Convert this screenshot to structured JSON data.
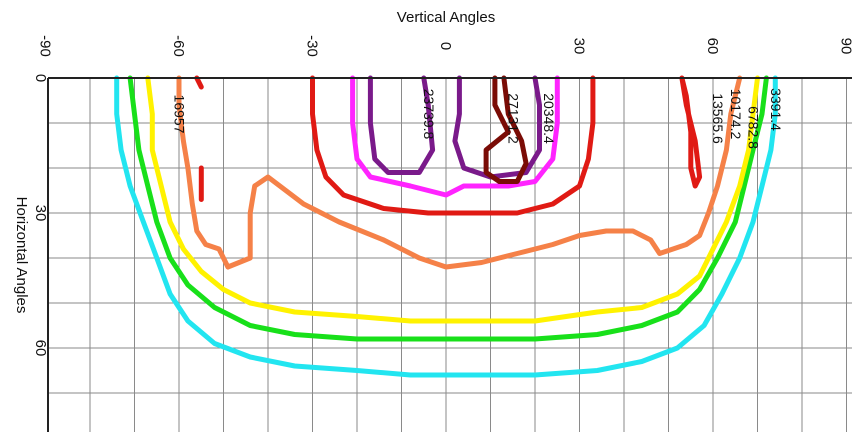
{
  "chart_data": {
    "type": "line",
    "title": "",
    "xlabel": "Vertical Angles",
    "ylabel": "Horizontal Angles",
    "xlim": [
      -90,
      90
    ],
    "ylim": [
      0,
      80
    ],
    "y_inverted": true,
    "grid": true,
    "legend": "none",
    "x_ticks": [
      {
        "value": -90,
        "label": "-90"
      },
      {
        "value": -60,
        "label": "-60"
      },
      {
        "value": -30,
        "label": "-30"
      },
      {
        "value": 0,
        "label": "0"
      },
      {
        "value": 30,
        "label": "30"
      },
      {
        "value": 60,
        "label": "60"
      },
      {
        "value": 90,
        "label": "90"
      }
    ],
    "y_ticks": [
      {
        "value": 0,
        "label": "0"
      },
      {
        "value": 30,
        "label": "30"
      },
      {
        "value": 60,
        "label": "60"
      }
    ],
    "series": [
      {
        "level": "3391.4",
        "color": "#22e5f0",
        "points": [
          [
            -74,
            0
          ],
          [
            -74,
            8
          ],
          [
            -73,
            16
          ],
          [
            -71,
            24
          ],
          [
            -68,
            32
          ],
          [
            -65,
            40
          ],
          [
            -62,
            48
          ],
          [
            -58,
            54
          ],
          [
            -52,
            59
          ],
          [
            -44,
            62
          ],
          [
            -34,
            64
          ],
          [
            -20,
            65
          ],
          [
            -8,
            66
          ],
          [
            0,
            66
          ],
          [
            8,
            66
          ],
          [
            20,
            66
          ],
          [
            34,
            65
          ],
          [
            44,
            63
          ],
          [
            52,
            60
          ],
          [
            58,
            55
          ],
          [
            62,
            48
          ],
          [
            66,
            40
          ],
          [
            69,
            32
          ],
          [
            71,
            24
          ],
          [
            73,
            16
          ],
          [
            74,
            8
          ],
          [
            74,
            0
          ]
        ]
      },
      {
        "level": "6782.8",
        "color": "#18e01a",
        "points": [
          [
            -71,
            0
          ],
          [
            -70,
            8
          ],
          [
            -69,
            16
          ],
          [
            -67,
            24
          ],
          [
            -65,
            32
          ],
          [
            -62,
            40
          ],
          [
            -58,
            46
          ],
          [
            -52,
            51
          ],
          [
            -44,
            55
          ],
          [
            -34,
            57
          ],
          [
            -20,
            58
          ],
          [
            -8,
            58
          ],
          [
            0,
            58
          ],
          [
            8,
            58
          ],
          [
            20,
            58
          ],
          [
            34,
            57
          ],
          [
            44,
            55
          ],
          [
            52,
            52
          ],
          [
            57,
            47
          ],
          [
            61,
            40
          ],
          [
            65,
            32
          ],
          [
            67,
            24
          ],
          [
            69,
            16
          ],
          [
            71,
            8
          ],
          [
            72,
            0
          ]
        ]
      },
      {
        "level": "10174.2",
        "color": "#fff200",
        "points": [
          [
            -67,
            0
          ],
          [
            -66,
            8
          ],
          [
            -66,
            16
          ],
          [
            -64,
            24
          ],
          [
            -62,
            32
          ],
          [
            -59,
            38
          ],
          [
            -55,
            43
          ],
          [
            -50,
            47
          ],
          [
            -44,
            50
          ],
          [
            -34,
            52
          ],
          [
            -20,
            53
          ],
          [
            -8,
            54
          ],
          [
            0,
            54
          ],
          [
            8,
            54
          ],
          [
            20,
            54
          ],
          [
            34,
            52
          ],
          [
            44,
            51
          ],
          [
            52,
            48
          ],
          [
            57,
            44
          ],
          [
            60,
            38
          ],
          [
            63,
            32
          ],
          [
            66,
            24
          ],
          [
            68,
            16
          ],
          [
            69,
            8
          ],
          [
            70,
            0
          ]
        ]
      },
      {
        "level": "13565.6",
        "color": "#f58148",
        "points": [
          [
            -60,
            0
          ],
          [
            -60,
            6
          ],
          [
            -59,
            14
          ],
          [
            -58,
            20
          ],
          [
            -57,
            28
          ],
          [
            -56,
            34
          ],
          [
            -54,
            37
          ],
          [
            -51,
            38
          ],
          [
            -49,
            42
          ],
          [
            -44,
            40
          ],
          [
            -44,
            30
          ],
          [
            -43,
            24
          ],
          [
            -40,
            22
          ],
          [
            -36,
            25
          ],
          [
            -32,
            28
          ],
          [
            -24,
            32
          ],
          [
            -14,
            36
          ],
          [
            -6,
            40
          ],
          [
            0,
            42
          ],
          [
            8,
            41
          ],
          [
            16,
            39
          ],
          [
            24,
            37
          ],
          [
            30,
            35
          ],
          [
            36,
            34
          ],
          [
            42,
            34
          ],
          [
            46,
            36
          ],
          [
            48,
            39
          ],
          [
            51,
            38
          ],
          [
            54,
            37
          ],
          [
            57,
            35
          ],
          [
            59,
            30
          ],
          [
            61,
            24
          ],
          [
            63,
            16
          ],
          [
            64,
            8
          ],
          [
            66,
            0
          ]
        ]
      },
      {
        "level": "16957",
        "color": "#e01a14",
        "points": [
          [
            -30,
            0
          ],
          [
            -30,
            8
          ],
          [
            -29,
            16
          ],
          [
            -27,
            22
          ],
          [
            -23,
            26
          ],
          [
            -14,
            29
          ],
          [
            -4,
            30
          ],
          [
            0,
            30
          ],
          [
            6,
            30
          ],
          [
            16,
            30
          ],
          [
            24,
            28
          ],
          [
            30,
            24
          ],
          [
            32,
            18
          ],
          [
            33,
            10
          ],
          [
            33,
            0
          ]
        ]
      },
      {
        "level": "16957 (peak)",
        "color": "#e01a14",
        "points": [
          [
            -56,
            0
          ],
          [
            -55,
            2
          ]
        ]
      },
      {
        "level": "16957 (island)",
        "color": "#e01a14",
        "points": [
          [
            -55,
            20
          ],
          [
            -55,
            27
          ]
        ]
      },
      {
        "level": "16957 (right lobe)",
        "color": "#e01a14",
        "points": [
          [
            53,
            0
          ],
          [
            54,
            6
          ],
          [
            56,
            14
          ],
          [
            57,
            22
          ],
          [
            56,
            24
          ],
          [
            55,
            20
          ],
          [
            55,
            12
          ],
          [
            54,
            4
          ],
          [
            53,
            0
          ]
        ]
      },
      {
        "level": "20348.4",
        "color": "#ff24ff",
        "points": [
          [
            -21,
            0
          ],
          [
            -21,
            10
          ],
          [
            -20,
            18
          ],
          [
            -17,
            22
          ],
          [
            -8,
            24
          ],
          [
            -4,
            25
          ],
          [
            0,
            26
          ],
          [
            4,
            24
          ],
          [
            14,
            24
          ],
          [
            20,
            23
          ],
          [
            24,
            18
          ],
          [
            25,
            10
          ],
          [
            25,
            0
          ]
        ]
      },
      {
        "level": "23739.8",
        "color": "#7a1a8a",
        "points": [
          [
            -17,
            0
          ],
          [
            -17,
            10
          ],
          [
            -16,
            18
          ],
          [
            -13,
            21
          ],
          [
            -6,
            21
          ],
          [
            -3,
            16
          ],
          [
            -4,
            6
          ],
          [
            -5,
            0
          ]
        ]
      },
      {
        "level": "23739.8 (right)",
        "color": "#7a1a8a",
        "points": [
          [
            3,
            0
          ],
          [
            3,
            8
          ],
          [
            2,
            14
          ],
          [
            4,
            20
          ],
          [
            10,
            22
          ],
          [
            18,
            21
          ],
          [
            21,
            16
          ],
          [
            21,
            6
          ],
          [
            20,
            0
          ]
        ]
      },
      {
        "level": "27131.2",
        "color": "#7a0c06",
        "points": [
          [
            11,
            0
          ],
          [
            11,
            6
          ],
          [
            14,
            12
          ],
          [
            9,
            16
          ],
          [
            9,
            21
          ],
          [
            12,
            23
          ],
          [
            16,
            23
          ],
          [
            18,
            19
          ],
          [
            17,
            14
          ],
          [
            14,
            8
          ],
          [
            13,
            0
          ]
        ]
      }
    ],
    "contour_labels": [
      {
        "text": "16957",
        "x": -61,
        "y": 8
      },
      {
        "text": "23739.8",
        "x": -5,
        "y": 8
      },
      {
        "text": "27131.2",
        "x": 14,
        "y": 9
      },
      {
        "text": "20348.4",
        "x": 22,
        "y": 9
      },
      {
        "text": "13565.6",
        "x": 60,
        "y": 9
      },
      {
        "text": "10174.2",
        "x": 64,
        "y": 8
      },
      {
        "text": "6782.8",
        "x": 68,
        "y": 11
      },
      {
        "text": "3391.4",
        "x": 73,
        "y": 7
      }
    ]
  }
}
